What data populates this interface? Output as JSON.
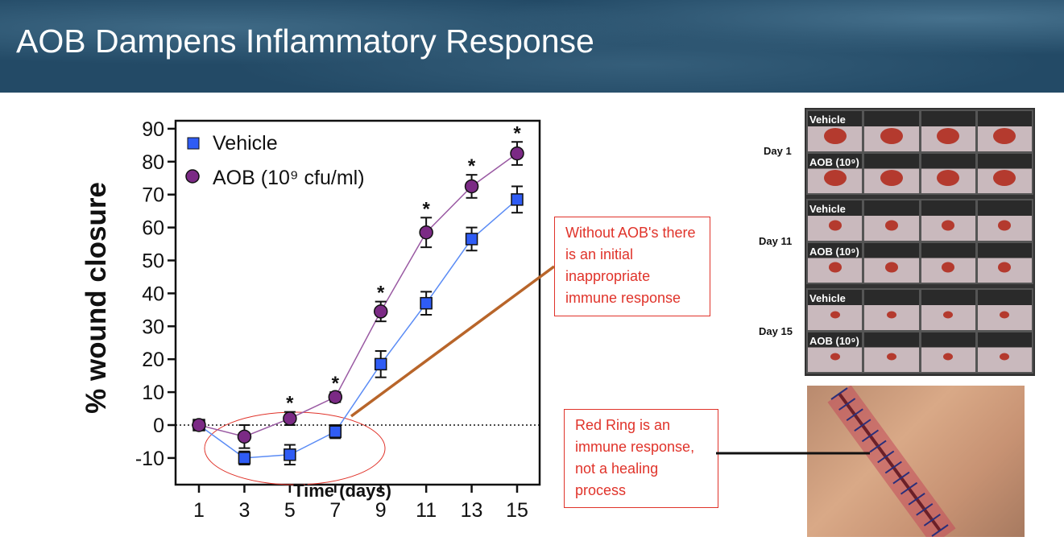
{
  "slide": {
    "title": "AOB Dampens Inflammatory Response"
  },
  "callouts": [
    {
      "text": "Without AOB's there is an initial inappropriate immune response"
    },
    {
      "text": "Red Ring is an immune response, not a healing process"
    }
  ],
  "photo_panel": {
    "days": [
      "Day 1",
      "Day 11",
      "Day 15"
    ],
    "row_labels": [
      "Vehicle",
      "AOB (10⁹)"
    ]
  },
  "chart_data": {
    "type": "line",
    "title": "",
    "xlabel": "Time (days)",
    "ylabel": "% wound closure",
    "x": [
      1,
      3,
      5,
      7,
      9,
      11,
      13,
      15
    ],
    "ylim": [
      -20,
      90
    ],
    "yticks": [
      -10,
      0,
      10,
      20,
      30,
      40,
      50,
      60,
      70,
      80,
      90
    ],
    "grid": false,
    "legend": "top-left",
    "reference_line": 0,
    "series": [
      {
        "name": "Vehicle",
        "marker": "square",
        "color": "#2f5cf5",
        "values": [
          0,
          -10,
          -9,
          -2,
          18.5,
          37,
          56.5,
          68.5
        ],
        "error": [
          1,
          2,
          3,
          2,
          4,
          3.5,
          3.5,
          4
        ]
      },
      {
        "name": "AOB (10⁹ cfu/ml)",
        "marker": "circle",
        "color": "#7b2a85",
        "values": [
          0,
          -3.5,
          2,
          8.5,
          34.5,
          58.5,
          72.5,
          82.5
        ],
        "error": [
          1,
          3.5,
          2,
          1.5,
          3,
          4.5,
          3.5,
          3.5
        ]
      }
    ],
    "significance": {
      "symbol": "*",
      "x": [
        5,
        7,
        9,
        11,
        13,
        15
      ]
    }
  }
}
